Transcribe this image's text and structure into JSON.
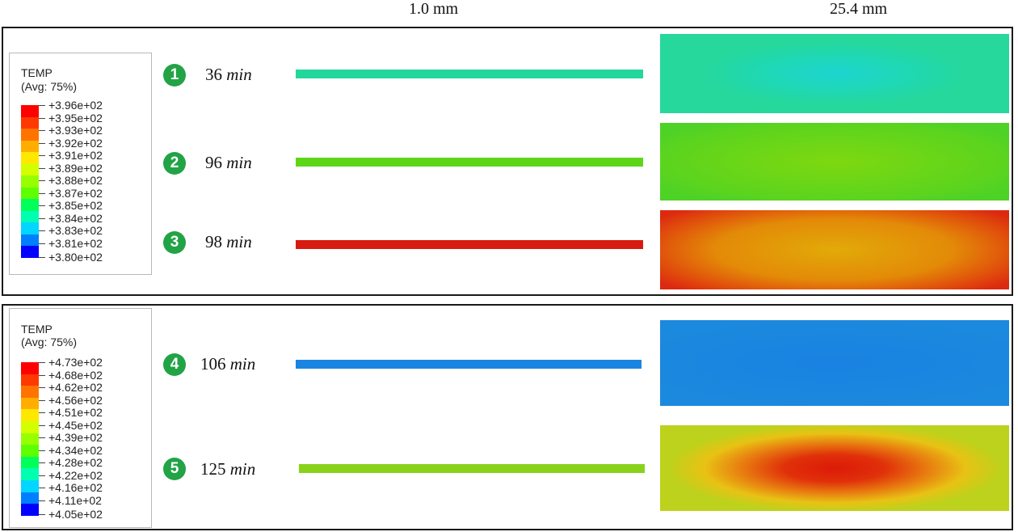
{
  "headers": {
    "thin": "1.0 mm",
    "thick": "25.4 mm"
  },
  "panels": [
    {
      "legend": {
        "title": "TEMP",
        "subtitle": "(Avg: 75%)",
        "values": [
          "+3.96e+02",
          "+3.95e+02",
          "+3.93e+02",
          "+3.92e+02",
          "+3.91e+02",
          "+3.89e+02",
          "+3.88e+02",
          "+3.87e+02",
          "+3.85e+02",
          "+3.84e+02",
          "+3.83e+02",
          "+3.81e+02",
          "+3.80e+02"
        ]
      },
      "rows": [
        {
          "num": "1",
          "value": "36",
          "unit": "min"
        },
        {
          "num": "2",
          "value": "96",
          "unit": "min"
        },
        {
          "num": "3",
          "value": "98",
          "unit": "min"
        }
      ]
    },
    {
      "legend": {
        "title": "TEMP",
        "subtitle": "(Avg: 75%)",
        "values": [
          "+4.73e+02",
          "+4.68e+02",
          "+4.62e+02",
          "+4.56e+02",
          "+4.51e+02",
          "+4.45e+02",
          "+4.39e+02",
          "+4.34e+02",
          "+4.28e+02",
          "+4.22e+02",
          "+4.16e+02",
          "+4.11e+02",
          "+4.05e+02"
        ]
      },
      "rows": [
        {
          "num": "4",
          "value": "106",
          "unit": "min"
        },
        {
          "num": "5",
          "value": "125",
          "unit": "min"
        }
      ]
    }
  ],
  "colors": {
    "legend_scale": [
      "#ff0000",
      "#ff3a00",
      "#ff7400",
      "#ffae00",
      "#ffe800",
      "#d3ff00",
      "#98ff00",
      "#5eff00",
      "#00ff5a",
      "#00ffb0",
      "#00d6ff",
      "#0080ff",
      "#002aff",
      "#0000ff"
    ],
    "bar_36": "#22d69c",
    "bar_96": "#5ed618",
    "bar_98": "#d81b10",
    "bar_106": "#1a85e0",
    "bar_125": "#8ad21a",
    "badge": "#22a346"
  }
}
